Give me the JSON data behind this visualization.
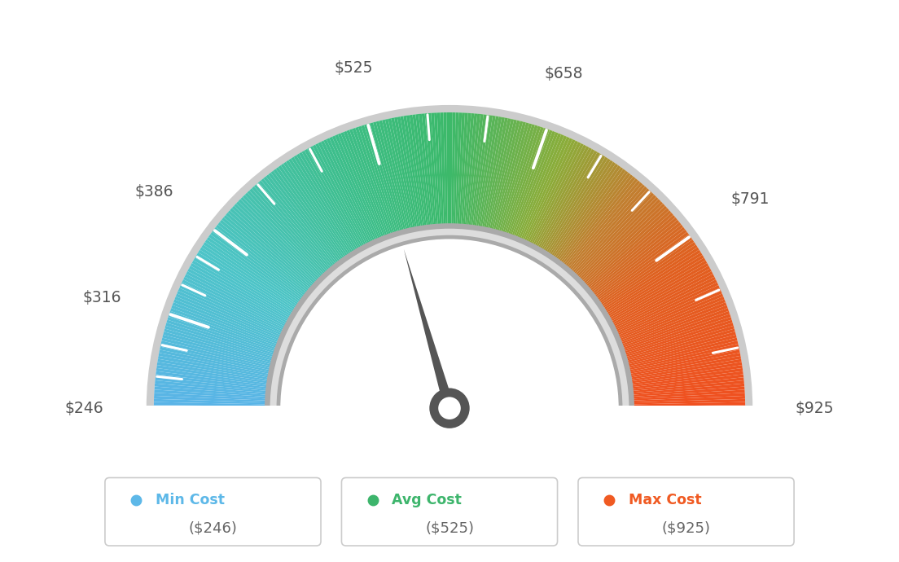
{
  "min_val": 246,
  "max_val": 925,
  "avg_val": 525,
  "needle_val": 525,
  "tick_labels": [
    "$246",
    "$316",
    "$386",
    "$525",
    "$658",
    "$791",
    "$925"
  ],
  "tick_values": [
    246,
    316,
    386,
    525,
    658,
    791,
    925
  ],
  "min_cost_label": "Min Cost",
  "avg_cost_label": "Avg Cost",
  "max_cost_label": "Max Cost",
  "min_cost_value": "($246)",
  "avg_cost_value": "($525)",
  "max_cost_value": "($925)",
  "min_color": "#5db8e8",
  "avg_color": "#3db56c",
  "max_color": "#f05a22",
  "background_color": "#ffffff",
  "color_stops": [
    [
      0.0,
      "#5ab4e8"
    ],
    [
      0.18,
      "#4dc4c8"
    ],
    [
      0.37,
      "#3dbe8a"
    ],
    [
      0.5,
      "#3cb96a"
    ],
    [
      0.63,
      "#8aad3a"
    ],
    [
      0.72,
      "#c08030"
    ],
    [
      0.82,
      "#e06020"
    ],
    [
      1.0,
      "#f05020"
    ]
  ]
}
